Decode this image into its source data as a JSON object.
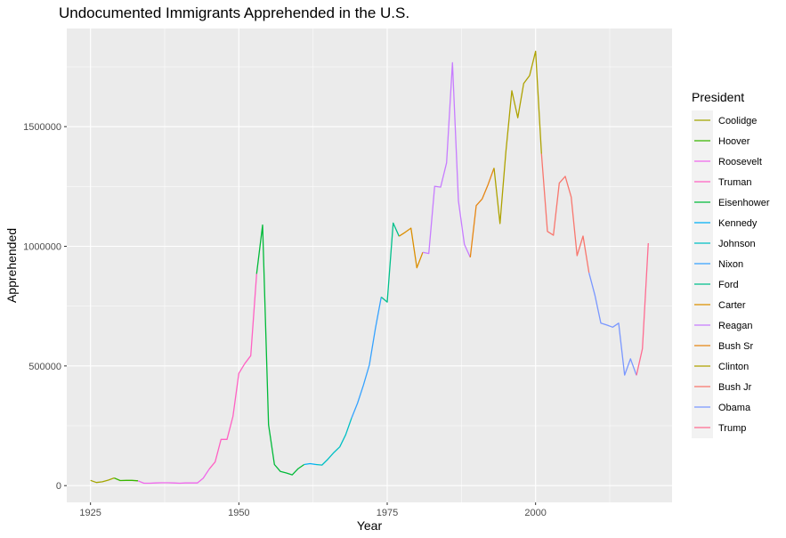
{
  "chart_data": {
    "type": "line",
    "title": "Undocumented Immigrants Apprehended in the U.S.",
    "xlabel": "Year",
    "ylabel": "Apprehended",
    "xlim": [
      1921,
      2023
    ],
    "ylim": [
      -70000,
      1910000
    ],
    "x_ticks": [
      1925,
      1950,
      1975,
      2000
    ],
    "y_ticks": [
      0,
      500000,
      1000000,
      1500000
    ],
    "y_tick_labels": [
      "0",
      "500000",
      "1000000",
      "1500000"
    ],
    "grid": true,
    "legend_title": "President",
    "legend_position": "right",
    "series": [
      {
        "name": "Coolidge",
        "color": "#A3A500",
        "x": [
          1925,
          1926,
          1927,
          1928,
          1929
        ],
        "y": [
          22000,
          13000,
          16000,
          23000,
          32000
        ]
      },
      {
        "name": "Hoover",
        "color": "#39B600",
        "x": [
          1929,
          1930,
          1931,
          1932,
          1933
        ],
        "y": [
          32000,
          21000,
          22000,
          22000,
          20000
        ]
      },
      {
        "name": "Roosevelt",
        "color": "#EF67EB",
        "x": [
          1933,
          1934,
          1935,
          1936,
          1937,
          1938,
          1939,
          1940,
          1941,
          1942,
          1943,
          1944,
          1945
        ],
        "y": [
          20000,
          10000,
          10000,
          11000,
          12000,
          12000,
          11000,
          10000,
          11000,
          11000,
          11000,
          31000,
          69000
        ]
      },
      {
        "name": "Truman",
        "color": "#FF61C3",
        "x": [
          1945,
          1946,
          1947,
          1948,
          1949,
          1950,
          1951,
          1952,
          1953
        ],
        "y": [
          69000,
          99000,
          193000,
          193000,
          289000,
          469000,
          510000,
          543000,
          885000
        ]
      },
      {
        "name": "Eisenhower",
        "color": "#00BA38",
        "x": [
          1953,
          1954,
          1955,
          1956,
          1957,
          1958,
          1959,
          1960,
          1961
        ],
        "y": [
          885000,
          1089000,
          254000,
          88000,
          59000,
          53000,
          45000,
          71000,
          88000
        ]
      },
      {
        "name": "Kennedy",
        "color": "#00B0F6",
        "x": [
          1961,
          1962,
          1963
        ],
        "y": [
          88000,
          92000,
          88000
        ]
      },
      {
        "name": "Johnson",
        "color": "#00BFC4",
        "x": [
          1963,
          1964,
          1965,
          1966,
          1967,
          1968,
          1969
        ],
        "y": [
          88000,
          86000,
          110000,
          138000,
          162000,
          212000,
          283000
        ]
      },
      {
        "name": "Nixon",
        "color": "#35A2FF",
        "x": [
          1969,
          1970,
          1971,
          1972,
          1973,
          1974
        ],
        "y": [
          283000,
          345000,
          420000,
          505000,
          656000,
          788000
        ]
      },
      {
        "name": "Ford",
        "color": "#00C08B",
        "x": [
          1974,
          1975,
          1976,
          1977
        ],
        "y": [
          788000,
          767000,
          1097000,
          1042000
        ]
      },
      {
        "name": "Carter",
        "color": "#DB8E00",
        "x": [
          1977,
          1978,
          1979,
          1980,
          1981
        ],
        "y": [
          1042000,
          1058000,
          1076000,
          910000,
          975000
        ]
      },
      {
        "name": "Reagan",
        "color": "#C77CFF",
        "x": [
          1981,
          1982,
          1983,
          1984,
          1985,
          1986,
          1987,
          1988,
          1989
        ],
        "y": [
          975000,
          970000,
          1251000,
          1247000,
          1349000,
          1767000,
          1190000,
          1008000,
          954000
        ]
      },
      {
        "name": "Bush Sr",
        "color": "#E68613",
        "x": [
          1989,
          1990,
          1991,
          1992,
          1993
        ],
        "y": [
          954000,
          1170000,
          1198000,
          1258000,
          1327000
        ]
      },
      {
        "name": "Clinton",
        "color": "#AEA200",
        "x": [
          1993,
          1994,
          1995,
          1996,
          1997,
          1998,
          1999,
          2000,
          2001
        ],
        "y": [
          1327000,
          1095000,
          1394000,
          1650000,
          1537000,
          1680000,
          1714000,
          1815000,
          1387000
        ]
      },
      {
        "name": "Bush Jr",
        "color": "#F8766D",
        "x": [
          2001,
          2002,
          2003,
          2004,
          2005,
          2006,
          2007,
          2008,
          2009
        ],
        "y": [
          1387000,
          1062000,
          1046000,
          1264000,
          1292000,
          1206000,
          961000,
          1043000,
          889000
        ]
      },
      {
        "name": "Obama",
        "color": "#7997FF",
        "x": [
          2009,
          2010,
          2011,
          2012,
          2013,
          2014,
          2015,
          2016,
          2017
        ],
        "y": [
          889000,
          796000,
          679000,
          671000,
          662000,
          679000,
          462000,
          530000,
          461000
        ]
      },
      {
        "name": "Trump",
        "color": "#FF6C91",
        "x": [
          2017,
          2018,
          2019
        ],
        "y": [
          461000,
          572000,
          1013000
        ]
      }
    ]
  }
}
